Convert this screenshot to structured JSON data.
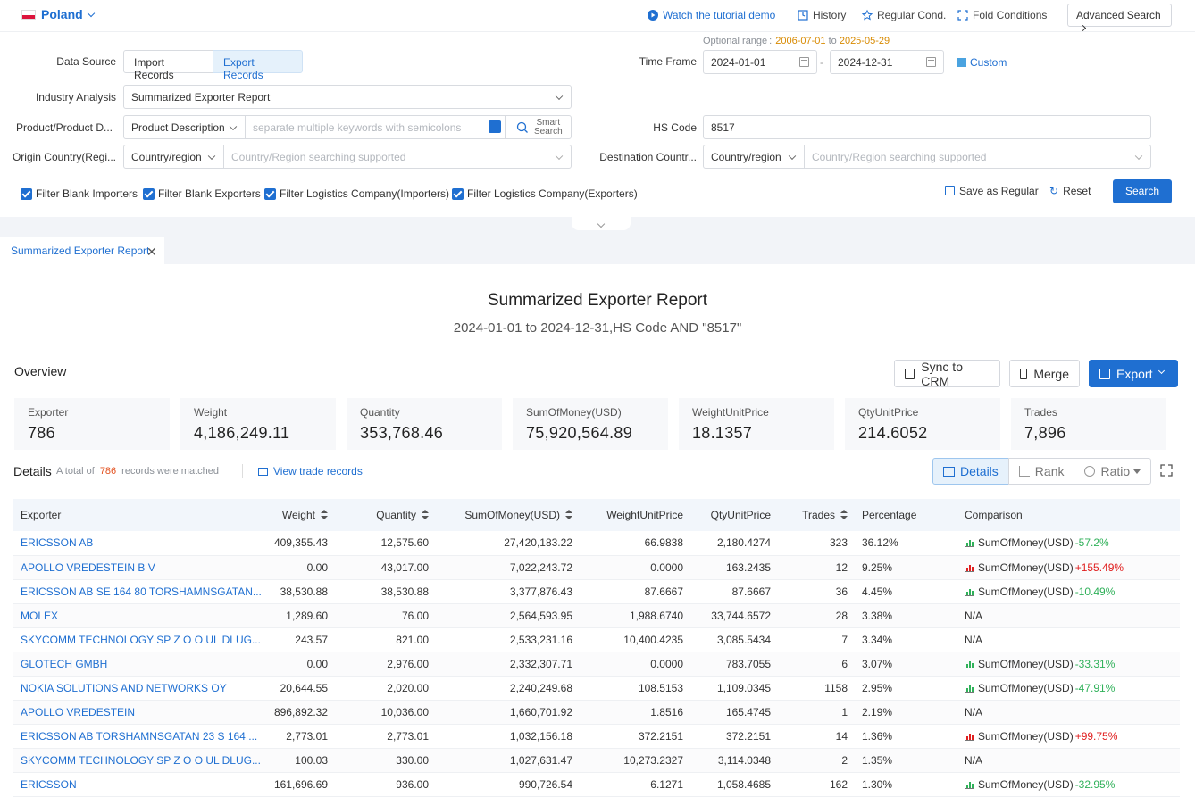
{
  "topbar": {
    "country": "Poland",
    "links": {
      "tutorial": "Watch the tutorial demo",
      "history": "History",
      "regular": "Regular Cond.",
      "fold": "Fold Conditions"
    },
    "advanced": "Advanced Search"
  },
  "form": {
    "optional_range_label": "Optional range",
    "optional_range_from": "2006-07-01",
    "optional_range_to_word": "to",
    "optional_range_to": "2025-05-29",
    "data_source_label": "Data Source",
    "import_records": "Import Records",
    "export_records": "Export Records",
    "time_frame_label": "Time Frame",
    "date_from": "2024-01-01",
    "date_sep": "-",
    "date_to": "2024-12-31",
    "custom": "Custom",
    "industry_label": "Industry Analysis",
    "industry_value": "Summarized Exporter Report",
    "product_label": "Product/Product D...",
    "product_type": "Product Description",
    "product_placeholder": "separate multiple keywords with semicolons",
    "smart_search_1": "Smart",
    "smart_search_2": "Search",
    "hs_label": "HS Code",
    "hs_value": "8517",
    "origin_label": "Origin Country(Regi...",
    "origin_type": "Country/region",
    "origin_placeholder": "Country/Region searching supported",
    "dest_label": "Destination Countr...",
    "dest_type": "Country/region",
    "dest_placeholder": "Country/Region searching supported",
    "filters": [
      "Filter Blank Importers",
      "Filter Blank Exporters",
      "Filter Logistics Company(Importers)",
      "Filter Logistics Company(Exporters)"
    ],
    "save_regular": "Save as Regular",
    "reset": "Reset",
    "search": "Search"
  },
  "tab": {
    "label": "Summarized Exporter Report"
  },
  "report": {
    "title": "Summarized Exporter Report",
    "subtitle": "2024-01-01 to 2024-12-31,HS Code AND \"8517\""
  },
  "overview": {
    "label": "Overview",
    "sync": "Sync to CRM",
    "merge": "Merge",
    "export": "Export",
    "stats": [
      {
        "k": "Exporter",
        "v": "786"
      },
      {
        "k": "Weight",
        "v": "4,186,249.11"
      },
      {
        "k": "Quantity",
        "v": "353,768.46"
      },
      {
        "k": "SumOfMoney(USD)",
        "v": "75,920,564.89"
      },
      {
        "k": "WeightUnitPrice",
        "v": "18.1357"
      },
      {
        "k": "QtyUnitPrice",
        "v": "214.6052"
      },
      {
        "k": "Trades",
        "v": "7,896"
      }
    ]
  },
  "details": {
    "label": "Details",
    "total_of": "A total of",
    "count": "786",
    "matched": "records were matched",
    "view_trade": "View trade records",
    "views": [
      "Details",
      "Rank",
      "Ratio"
    ]
  },
  "table": {
    "headers": [
      "Exporter",
      "Weight",
      "Quantity",
      "SumOfMoney(USD)",
      "WeightUnitPrice",
      "QtyUnitPrice",
      "Trades",
      "Percentage",
      "Comparison"
    ],
    "rows": [
      {
        "exporter": "ERICSSON AB",
        "weight": "409,355.43",
        "quantity": "12,575.60",
        "sum": "27,420,183.22",
        "wup": "66.9838",
        "qup": "2,180.4274",
        "trades": "323",
        "pct": "36.12%",
        "cmp_label": "SumOfMoney(USD)",
        "cmp_val": "-57.2%",
        "dir": "down"
      },
      {
        "exporter": "APOLLO VREDESTEIN B V",
        "weight": "0.00",
        "quantity": "43,017.00",
        "sum": "7,022,243.72",
        "wup": "0.0000",
        "qup": "163.2435",
        "trades": "12",
        "pct": "9.25%",
        "cmp_label": "SumOfMoney(USD)",
        "cmp_val": "+155.49%",
        "dir": "up"
      },
      {
        "exporter": "ERICSSON AB SE 164 80 TORSHAMNSGATAN...",
        "weight": "38,530.88",
        "quantity": "38,530.88",
        "sum": "3,377,876.43",
        "wup": "87.6667",
        "qup": "87.6667",
        "trades": "36",
        "pct": "4.45%",
        "cmp_label": "SumOfMoney(USD)",
        "cmp_val": "-10.49%",
        "dir": "down"
      },
      {
        "exporter": "MOLEX",
        "weight": "1,289.60",
        "quantity": "76.00",
        "sum": "2,564,593.95",
        "wup": "1,988.6740",
        "qup": "33,744.6572",
        "trades": "28",
        "pct": "3.38%",
        "cmp_label": "N/A",
        "cmp_val": "",
        "dir": "na"
      },
      {
        "exporter": "SKYCOMM TECHNOLOGY SP Z O O UL DLUG...",
        "weight": "243.57",
        "quantity": "821.00",
        "sum": "2,533,231.16",
        "wup": "10,400.4235",
        "qup": "3,085.5434",
        "trades": "7",
        "pct": "3.34%",
        "cmp_label": "N/A",
        "cmp_val": "",
        "dir": "na"
      },
      {
        "exporter": "GLOTECH GMBH",
        "weight": "0.00",
        "quantity": "2,976.00",
        "sum": "2,332,307.71",
        "wup": "0.0000",
        "qup": "783.7055",
        "trades": "6",
        "pct": "3.07%",
        "cmp_label": "SumOfMoney(USD)",
        "cmp_val": "-33.31%",
        "dir": "down"
      },
      {
        "exporter": "NOKIA SOLUTIONS AND NETWORKS OY",
        "weight": "20,644.55",
        "quantity": "2,020.00",
        "sum": "2,240,249.68",
        "wup": "108.5153",
        "qup": "1,109.0345",
        "trades": "1158",
        "pct": "2.95%",
        "cmp_label": "SumOfMoney(USD)",
        "cmp_val": "-47.91%",
        "dir": "down"
      },
      {
        "exporter": "APOLLO VREDESTEIN",
        "weight": "896,892.32",
        "quantity": "10,036.00",
        "sum": "1,660,701.92",
        "wup": "1.8516",
        "qup": "165.4745",
        "trades": "1",
        "pct": "2.19%",
        "cmp_label": "N/A",
        "cmp_val": "",
        "dir": "na"
      },
      {
        "exporter": "ERICSSON AB TORSHAMNSGATAN 23 S 164 ...",
        "weight": "2,773.01",
        "quantity": "2,773.01",
        "sum": "1,032,156.18",
        "wup": "372.2151",
        "qup": "372.2151",
        "trades": "14",
        "pct": "1.36%",
        "cmp_label": "SumOfMoney(USD)",
        "cmp_val": "+99.75%",
        "dir": "up"
      },
      {
        "exporter": "SKYCOMM TECHNOLOGY SP Z O O UL DLUG...",
        "weight": "100.03",
        "quantity": "330.00",
        "sum": "1,027,631.47",
        "wup": "10,273.2327",
        "qup": "3,114.0348",
        "trades": "2",
        "pct": "1.35%",
        "cmp_label": "N/A",
        "cmp_val": "",
        "dir": "na"
      },
      {
        "exporter": "ERICSSON",
        "weight": "161,696.69",
        "quantity": "936.00",
        "sum": "990,726.54",
        "wup": "6.1271",
        "qup": "1,058.4685",
        "trades": "162",
        "pct": "1.30%",
        "cmp_label": "SumOfMoney(USD)",
        "cmp_val": "-32.95%",
        "dir": "down"
      }
    ]
  }
}
